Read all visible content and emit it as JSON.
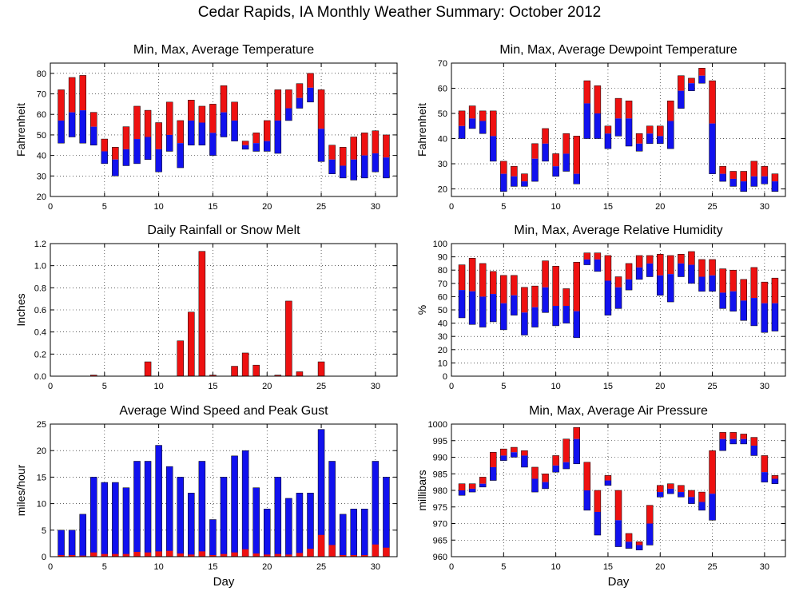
{
  "page_title": "Cedar Rapids, IA Monthly Weather Summary: October 2012",
  "chart_data": [
    {
      "id": "temperature",
      "type": "range-bar",
      "title": "Min, Max, Average Temperature",
      "xlabel": "",
      "ylabel": "Fahrenheit",
      "xlim": [
        0,
        32
      ],
      "ylim": [
        20,
        85
      ],
      "xticks": [
        0,
        5,
        10,
        15,
        20,
        25,
        30
      ],
      "yticks": [
        20,
        30,
        40,
        50,
        60,
        70,
        80
      ],
      "colors": {
        "upper": "#ee1111",
        "lower": "#1111ee"
      },
      "days": [
        1,
        2,
        3,
        4,
        5,
        6,
        7,
        8,
        9,
        10,
        11,
        12,
        13,
        14,
        15,
        16,
        17,
        18,
        19,
        20,
        21,
        22,
        23,
        24,
        25,
        26,
        27,
        28,
        29,
        30,
        31
      ],
      "min": [
        46,
        49,
        46,
        45,
        36,
        30,
        35,
        36,
        38,
        32,
        42,
        34,
        45,
        45,
        40,
        49,
        47,
        43,
        42,
        42,
        41,
        57,
        63,
        66,
        37,
        31,
        29,
        28,
        29,
        32,
        29
      ],
      "avg": [
        57,
        61,
        62,
        54,
        42,
        38,
        43,
        48,
        49,
        43,
        50,
        46,
        57,
        56,
        51,
        61,
        57,
        45,
        46,
        47,
        57,
        63,
        68,
        73,
        53,
        38,
        35,
        38,
        40,
        41,
        39
      ],
      "max": [
        72,
        78,
        79,
        61,
        48,
        44,
        54,
        64,
        62,
        56,
        66,
        57,
        67,
        64,
        65,
        74,
        66,
        47,
        51,
        57,
        72,
        72,
        75,
        80,
        72,
        45,
        44,
        49,
        51,
        52,
        50
      ]
    },
    {
      "id": "dewpoint",
      "type": "range-bar",
      "title": "Min, Max, Average Dewpoint Temperature",
      "xlabel": "",
      "ylabel": "Fahrenheit",
      "xlim": [
        0,
        32
      ],
      "ylim": [
        17,
        70
      ],
      "xticks": [
        0,
        5,
        10,
        15,
        20,
        25,
        30
      ],
      "yticks": [
        20,
        30,
        40,
        50,
        60,
        70
      ],
      "colors": {
        "upper": "#ee1111",
        "lower": "#1111ee"
      },
      "days": [
        1,
        2,
        3,
        4,
        5,
        6,
        7,
        8,
        9,
        10,
        11,
        12,
        13,
        14,
        15,
        16,
        17,
        18,
        19,
        20,
        21,
        22,
        23,
        24,
        25,
        26,
        27,
        28,
        29,
        30,
        31
      ],
      "min": [
        40,
        44,
        42,
        31,
        19,
        21,
        21,
        23,
        31,
        25,
        27,
        22,
        40,
        40,
        36,
        41,
        37,
        35,
        38,
        38,
        36,
        52,
        59,
        62,
        26,
        23,
        21,
        19,
        21,
        22,
        19
      ],
      "avg": [
        45,
        48,
        47,
        41,
        26,
        25,
        23,
        32,
        38,
        29,
        34,
        26,
        54,
        50,
        42,
        48,
        48,
        38,
        42,
        41,
        47,
        59,
        62,
        65,
        46,
        26,
        24,
        23,
        25,
        25,
        23
      ],
      "max": [
        51,
        53,
        51,
        51,
        31,
        29,
        26,
        38,
        44,
        34,
        42,
        41,
        63,
        61,
        45,
        56,
        55,
        42,
        45,
        45,
        55,
        65,
        64,
        68,
        63,
        29,
        27,
        27,
        31,
        29,
        26
      ]
    },
    {
      "id": "rainfall",
      "type": "bar",
      "title": "Daily Rainfall or Snow Melt",
      "xlabel": "",
      "ylabel": "Inches",
      "xlim": [
        0,
        32
      ],
      "ylim": [
        0,
        1.2
      ],
      "xticks": [
        0,
        5,
        10,
        15,
        20,
        25,
        30
      ],
      "yticks": [
        0,
        0.2,
        0.4,
        0.6,
        0.8,
        1.0,
        1.2
      ],
      "ytick_labels": [
        "0.0",
        "0.2",
        "0.4",
        "0.6",
        "0.8",
        "1.0",
        "1.2"
      ],
      "colors": {
        "bar": "#ee1111"
      },
      "days": [
        1,
        2,
        3,
        4,
        5,
        6,
        7,
        8,
        9,
        10,
        11,
        12,
        13,
        14,
        15,
        16,
        17,
        18,
        19,
        20,
        21,
        22,
        23,
        24,
        25,
        26,
        27,
        28,
        29,
        30,
        31
      ],
      "values": [
        0,
        0,
        0,
        0.01,
        0,
        0,
        0,
        0,
        0.13,
        0,
        0,
        0.32,
        0.58,
        1.13,
        0.01,
        0,
        0.09,
        0.21,
        0.1,
        0,
        0.01,
        0.68,
        0.04,
        0,
        0.13,
        0,
        0,
        0,
        0,
        0,
        0
      ]
    },
    {
      "id": "humidity",
      "type": "range-bar",
      "title": "Min, Max, Average Relative Humidity",
      "xlabel": "",
      "ylabel": "%",
      "xlim": [
        0,
        32
      ],
      "ylim": [
        0,
        100
      ],
      "xticks": [
        0,
        5,
        10,
        15,
        20,
        25,
        30
      ],
      "yticks": [
        0,
        10,
        20,
        30,
        40,
        50,
        60,
        70,
        80,
        90,
        100
      ],
      "colors": {
        "upper": "#ee1111",
        "lower": "#1111ee"
      },
      "days": [
        1,
        2,
        3,
        4,
        5,
        6,
        7,
        8,
        9,
        10,
        11,
        12,
        13,
        14,
        15,
        16,
        17,
        18,
        19,
        20,
        21,
        22,
        23,
        24,
        25,
        26,
        27,
        28,
        29,
        30,
        31
      ],
      "min": [
        44,
        39,
        37,
        41,
        35,
        46,
        31,
        37,
        48,
        38,
        40,
        29,
        84,
        79,
        46,
        51,
        65,
        73,
        75,
        61,
        56,
        75,
        70,
        64,
        64,
        51,
        49,
        42,
        38,
        33,
        34
      ],
      "avg": [
        65,
        64,
        60,
        62,
        55,
        61,
        48,
        52,
        67,
        53,
        53,
        49,
        88,
        88,
        72,
        67,
        73,
        82,
        85,
        76,
        77,
        85,
        84,
        75,
        76,
        63,
        64,
        57,
        59,
        55,
        55
      ],
      "max": [
        84,
        89,
        85,
        79,
        76,
        76,
        67,
        68,
        87,
        83,
        66,
        86,
        93,
        93,
        91,
        75,
        85,
        91,
        91,
        92,
        91,
        92,
        94,
        88,
        88,
        81,
        80,
        73,
        82,
        71,
        74
      ]
    },
    {
      "id": "wind",
      "type": "bar",
      "title": "Average Wind Speed and Peak Gust",
      "xlabel": "Day",
      "ylabel": "miles/hour",
      "xlim": [
        0,
        32
      ],
      "ylim": [
        0,
        25
      ],
      "xticks": [
        0,
        5,
        10,
        15,
        20,
        25,
        30
      ],
      "yticks": [
        0,
        5,
        10,
        15,
        20,
        25
      ],
      "colors": {
        "gust": "#1111ee",
        "avg": "#ee1111"
      },
      "days": [
        1,
        2,
        3,
        4,
        5,
        6,
        7,
        8,
        9,
        10,
        11,
        12,
        13,
        14,
        15,
        16,
        17,
        18,
        19,
        20,
        21,
        22,
        23,
        24,
        25,
        26,
        27,
        28,
        29,
        30,
        31
      ],
      "gust": [
        5,
        5,
        8,
        15,
        14,
        14,
        13,
        18,
        18,
        21,
        17,
        15,
        12,
        18,
        7,
        15,
        19,
        20,
        13,
        9,
        15,
        11,
        12,
        12,
        24,
        18,
        8,
        9,
        9,
        18,
        15
      ],
      "average": [
        0.3,
        0.3,
        0.2,
        0.8,
        0.5,
        0.5,
        0.5,
        0.9,
        0.8,
        1.0,
        1.1,
        0.6,
        0.4,
        1.0,
        0.3,
        0.5,
        0.8,
        1.4,
        0.6,
        0.4,
        0.5,
        0.4,
        0.7,
        1.5,
        4.1,
        2.2,
        0.3,
        0.3,
        0.3,
        2.3,
        1.7
      ]
    },
    {
      "id": "pressure",
      "type": "range-bar",
      "title": "Min, Max, Average Air Pressure",
      "xlabel": "Day",
      "ylabel": "millibars",
      "xlim": [
        0,
        32
      ],
      "ylim": [
        960,
        1000
      ],
      "xticks": [
        0,
        5,
        10,
        15,
        20,
        25,
        30
      ],
      "yticks": [
        960,
        965,
        970,
        975,
        980,
        985,
        990,
        995,
        1000
      ],
      "colors": {
        "upper": "#ee1111",
        "lower": "#1111ee"
      },
      "days": [
        1,
        2,
        3,
        4,
        5,
        6,
        7,
        8,
        9,
        10,
        11,
        12,
        13,
        14,
        15,
        16,
        17,
        18,
        19,
        20,
        21,
        22,
        23,
        24,
        25,
        26,
        27,
        28,
        29,
        30,
        31
      ],
      "min": [
        978.5,
        979.5,
        981,
        983,
        989,
        990,
        987,
        979.5,
        980.5,
        985.5,
        986.5,
        988,
        974,
        966.5,
        981.5,
        963,
        962.5,
        962,
        963.5,
        978,
        979,
        978,
        976,
        974,
        971,
        992,
        994,
        994,
        990.5,
        982.5,
        982
      ],
      "avg": [
        980,
        980.5,
        982,
        987,
        990.5,
        991.5,
        990.5,
        983.5,
        982.5,
        987.5,
        988.5,
        995.5,
        980,
        973.5,
        983,
        971,
        964.5,
        963.5,
        970,
        979.5,
        980.5,
        979.5,
        978,
        976.5,
        979,
        995.5,
        995.5,
        995.5,
        993.5,
        985.5,
        983.5
      ],
      "max": [
        982,
        982,
        984,
        991.5,
        992.5,
        993,
        992,
        987,
        985,
        990.5,
        995.5,
        999,
        988.5,
        980,
        984.5,
        980,
        967,
        964.5,
        975.5,
        981.5,
        982,
        981.5,
        980,
        979.5,
        992,
        997.5,
        997.5,
        997,
        996,
        990.5,
        984.5
      ]
    }
  ]
}
